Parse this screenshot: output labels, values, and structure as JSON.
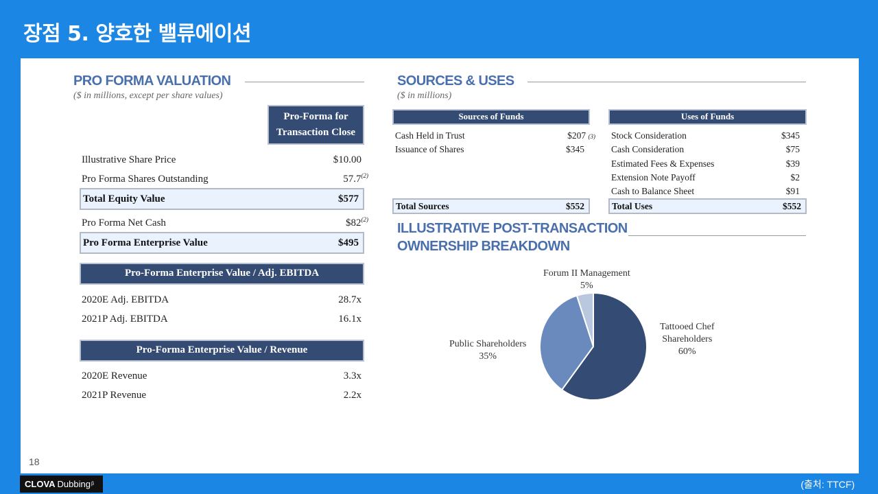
{
  "slide": {
    "title": "장점 5. 양호한 밸류에이션",
    "page_number": "18",
    "logo_bold": "CLOVA",
    "logo_text": "Dubbing",
    "logo_mark": "β",
    "source": "(출처: TTCF)"
  },
  "valuation": {
    "title": "PRO FORMA VALUATION",
    "subtitle": "($ in millions, except per share values)",
    "header_line1": "Pro-Forma for",
    "header_line2": "Transaction Close",
    "rows": [
      {
        "label": "Illustrative Share Price",
        "value": "$10.00",
        "note": ""
      },
      {
        "label": "Pro Forma Shares Outstanding",
        "value": "57.7",
        "note": "(2)"
      }
    ],
    "total_equity": {
      "label": "Total Equity Value",
      "value": "$577"
    },
    "net_cash": {
      "label": "Pro Forma Net Cash",
      "value": "$82",
      "note": "(2)"
    },
    "enterprise": {
      "label": "Pro Forma Enterprise Value",
      "value": "$495"
    },
    "ebitda_header": "Pro-Forma Enterprise Value / Adj. EBITDA",
    "ebitda_rows": [
      {
        "label": "2020E Adj. EBITDA",
        "value": "28.7x"
      },
      {
        "label": "2021P Adj. EBITDA",
        "value": "16.1x"
      }
    ],
    "revenue_header": "Pro-Forma Enterprise Value / Revenue",
    "revenue_rows": [
      {
        "label": "2020E Revenue",
        "value": "3.3x"
      },
      {
        "label": "2021P Revenue",
        "value": "2.2x"
      }
    ]
  },
  "sources_uses": {
    "title": "SOURCES & USES",
    "subtitle": "($ in millions)",
    "sources_header": "Sources of Funds",
    "sources": [
      {
        "label": "Cash Held in Trust",
        "value": "$207",
        "note": "(3)"
      },
      {
        "label": "Issuance of Shares",
        "value": "$345",
        "note": ""
      }
    ],
    "sources_total": {
      "label": "Total Sources",
      "value": "$552"
    },
    "uses_header": "Uses of Funds",
    "uses": [
      {
        "label": "Stock Consideration",
        "value": "$345"
      },
      {
        "label": "Cash Consideration",
        "value": "$75"
      },
      {
        "label": "Estimated Fees & Expenses",
        "value": "$39"
      },
      {
        "label": "Extension Note Payoff",
        "value": "$2"
      },
      {
        "label": "Cash to Balance Sheet",
        "value": "$91"
      }
    ],
    "uses_total": {
      "label": "Total Uses",
      "value": "$552"
    }
  },
  "ownership": {
    "title_line1": "ILLUSTRATIVE POST-TRANSACTION",
    "title_line2": "OWNERSHIP BREAKDOWN",
    "labels": {
      "tattooed_line1": "Tattooed Chef",
      "tattooed_line2": "Shareholders",
      "tattooed_pct": "60%",
      "public_line1": "Public Shareholders",
      "public_pct": "35%",
      "forum_line1": "Forum II Management",
      "forum_pct": "5%"
    }
  },
  "chart_data": {
    "type": "pie",
    "categories": [
      "Tattooed Chef Shareholders",
      "Public Shareholders",
      "Forum II Management"
    ],
    "values": [
      60,
      35,
      5
    ],
    "colors": [
      "#344b73",
      "#6a89bc",
      "#b9c8df"
    ],
    "title": "ILLUSTRATIVE POST-TRANSACTION OWNERSHIP BREAKDOWN"
  }
}
